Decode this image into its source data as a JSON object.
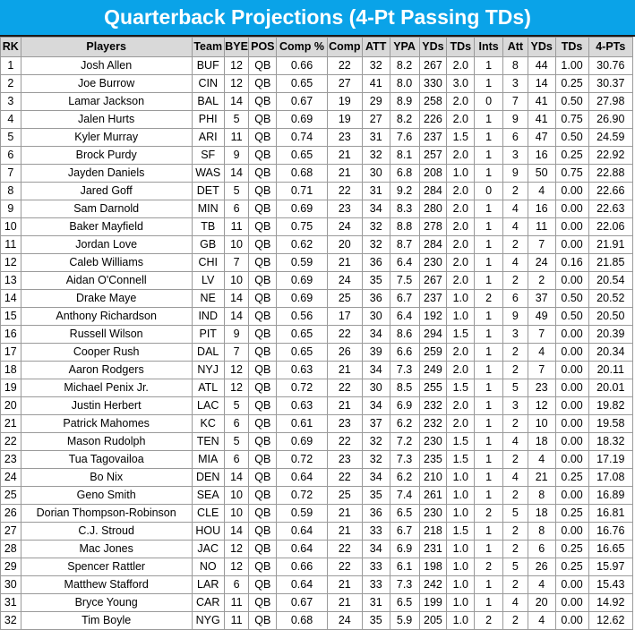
{
  "title": "Quarterback Projections (4-Pt Passing TDs)",
  "columns": [
    "RK",
    "Players",
    "Team",
    "BYE",
    "POS",
    "Comp %",
    "Comp",
    "ATT",
    "YPA",
    "YDs",
    "TDs",
    "Ints",
    "Att",
    "YDs",
    "TDs",
    "4-PTs"
  ],
  "rows": [
    [
      "1",
      "Josh Allen",
      "BUF",
      "12",
      "QB",
      "0.66",
      "22",
      "32",
      "8.2",
      "267",
      "2.0",
      "1",
      "8",
      "44",
      "1.00",
      "30.76"
    ],
    [
      "2",
      "Joe Burrow",
      "CIN",
      "12",
      "QB",
      "0.65",
      "27",
      "41",
      "8.0",
      "330",
      "3.0",
      "1",
      "3",
      "14",
      "0.25",
      "30.37"
    ],
    [
      "3",
      "Lamar Jackson",
      "BAL",
      "14",
      "QB",
      "0.67",
      "19",
      "29",
      "8.9",
      "258",
      "2.0",
      "0",
      "7",
      "41",
      "0.50",
      "27.98"
    ],
    [
      "4",
      "Jalen Hurts",
      "PHI",
      "5",
      "QB",
      "0.69",
      "19",
      "27",
      "8.2",
      "226",
      "2.0",
      "1",
      "9",
      "41",
      "0.75",
      "26.90"
    ],
    [
      "5",
      "Kyler Murray",
      "ARI",
      "11",
      "QB",
      "0.74",
      "23",
      "31",
      "7.6",
      "237",
      "1.5",
      "1",
      "6",
      "47",
      "0.50",
      "24.59"
    ],
    [
      "6",
      "Brock Purdy",
      "SF",
      "9",
      "QB",
      "0.65",
      "21",
      "32",
      "8.1",
      "257",
      "2.0",
      "1",
      "3",
      "16",
      "0.25",
      "22.92"
    ],
    [
      "7",
      "Jayden Daniels",
      "WAS",
      "14",
      "QB",
      "0.68",
      "21",
      "30",
      "6.8",
      "208",
      "1.0",
      "1",
      "9",
      "50",
      "0.75",
      "22.88"
    ],
    [
      "8",
      "Jared Goff",
      "DET",
      "5",
      "QB",
      "0.71",
      "22",
      "31",
      "9.2",
      "284",
      "2.0",
      "0",
      "2",
      "4",
      "0.00",
      "22.66"
    ],
    [
      "9",
      "Sam Darnold",
      "MIN",
      "6",
      "QB",
      "0.69",
      "23",
      "34",
      "8.3",
      "280",
      "2.0",
      "1",
      "4",
      "16",
      "0.00",
      "22.63"
    ],
    [
      "10",
      "Baker Mayfield",
      "TB",
      "11",
      "QB",
      "0.75",
      "24",
      "32",
      "8.8",
      "278",
      "2.0",
      "1",
      "4",
      "11",
      "0.00",
      "22.06"
    ],
    [
      "11",
      "Jordan Love",
      "GB",
      "10",
      "QB",
      "0.62",
      "20",
      "32",
      "8.7",
      "284",
      "2.0",
      "1",
      "2",
      "7",
      "0.00",
      "21.91"
    ],
    [
      "12",
      "Caleb Williams",
      "CHI",
      "7",
      "QB",
      "0.59",
      "21",
      "36",
      "6.4",
      "230",
      "2.0",
      "1",
      "4",
      "24",
      "0.16",
      "21.85"
    ],
    [
      "13",
      "Aidan O'Connell",
      "LV",
      "10",
      "QB",
      "0.69",
      "24",
      "35",
      "7.5",
      "267",
      "2.0",
      "1",
      "2",
      "2",
      "0.00",
      "20.54"
    ],
    [
      "14",
      "Drake Maye",
      "NE",
      "14",
      "QB",
      "0.69",
      "25",
      "36",
      "6.7",
      "237",
      "1.0",
      "2",
      "6",
      "37",
      "0.50",
      "20.52"
    ],
    [
      "15",
      "Anthony Richardson",
      "IND",
      "14",
      "QB",
      "0.56",
      "17",
      "30",
      "6.4",
      "192",
      "1.0",
      "1",
      "9",
      "49",
      "0.50",
      "20.50"
    ],
    [
      "16",
      "Russell Wilson",
      "PIT",
      "9",
      "QB",
      "0.65",
      "22",
      "34",
      "8.6",
      "294",
      "1.5",
      "1",
      "3",
      "7",
      "0.00",
      "20.39"
    ],
    [
      "17",
      "Cooper Rush",
      "DAL",
      "7",
      "QB",
      "0.65",
      "26",
      "39",
      "6.6",
      "259",
      "2.0",
      "1",
      "2",
      "4",
      "0.00",
      "20.34"
    ],
    [
      "18",
      "Aaron Rodgers",
      "NYJ",
      "12",
      "QB",
      "0.63",
      "21",
      "34",
      "7.3",
      "249",
      "2.0",
      "1",
      "2",
      "7",
      "0.00",
      "20.11"
    ],
    [
      "19",
      "Michael Penix Jr.",
      "ATL",
      "12",
      "QB",
      "0.72",
      "22",
      "30",
      "8.5",
      "255",
      "1.5",
      "1",
      "5",
      "23",
      "0.00",
      "20.01"
    ],
    [
      "20",
      "Justin Herbert",
      "LAC",
      "5",
      "QB",
      "0.63",
      "21",
      "34",
      "6.9",
      "232",
      "2.0",
      "1",
      "3",
      "12",
      "0.00",
      "19.82"
    ],
    [
      "21",
      "Patrick Mahomes",
      "KC",
      "6",
      "QB",
      "0.61",
      "23",
      "37",
      "6.2",
      "232",
      "2.0",
      "1",
      "2",
      "10",
      "0.00",
      "19.58"
    ],
    [
      "22",
      "Mason Rudolph",
      "TEN",
      "5",
      "QB",
      "0.69",
      "22",
      "32",
      "7.2",
      "230",
      "1.5",
      "1",
      "4",
      "18",
      "0.00",
      "18.32"
    ],
    [
      "23",
      "Tua Tagovailoa",
      "MIA",
      "6",
      "QB",
      "0.72",
      "23",
      "32",
      "7.3",
      "235",
      "1.5",
      "1",
      "2",
      "4",
      "0.00",
      "17.19"
    ],
    [
      "24",
      "Bo Nix",
      "DEN",
      "14",
      "QB",
      "0.64",
      "22",
      "34",
      "6.2",
      "210",
      "1.0",
      "1",
      "4",
      "21",
      "0.25",
      "17.08"
    ],
    [
      "25",
      "Geno Smith",
      "SEA",
      "10",
      "QB",
      "0.72",
      "25",
      "35",
      "7.4",
      "261",
      "1.0",
      "1",
      "2",
      "8",
      "0.00",
      "16.89"
    ],
    [
      "26",
      "Dorian Thompson-Robinson",
      "CLE",
      "10",
      "QB",
      "0.59",
      "21",
      "36",
      "6.5",
      "230",
      "1.0",
      "2",
      "5",
      "18",
      "0.25",
      "16.81"
    ],
    [
      "27",
      "C.J. Stroud",
      "HOU",
      "14",
      "QB",
      "0.64",
      "21",
      "33",
      "6.7",
      "218",
      "1.5",
      "1",
      "2",
      "8",
      "0.00",
      "16.76"
    ],
    [
      "28",
      "Mac Jones",
      "JAC",
      "12",
      "QB",
      "0.64",
      "22",
      "34",
      "6.9",
      "231",
      "1.0",
      "1",
      "2",
      "6",
      "0.25",
      "16.65"
    ],
    [
      "29",
      "Spencer Rattler",
      "NO",
      "12",
      "QB",
      "0.66",
      "22",
      "33",
      "6.1",
      "198",
      "1.0",
      "2",
      "5",
      "26",
      "0.25",
      "15.97"
    ],
    [
      "30",
      "Matthew Stafford",
      "LAR",
      "6",
      "QB",
      "0.64",
      "21",
      "33",
      "7.3",
      "242",
      "1.0",
      "1",
      "2",
      "4",
      "0.00",
      "15.43"
    ],
    [
      "31",
      "Bryce Young",
      "CAR",
      "11",
      "QB",
      "0.67",
      "21",
      "31",
      "6.5",
      "199",
      "1.0",
      "1",
      "4",
      "20",
      "0.00",
      "14.92"
    ],
    [
      "32",
      "Tim Boyle",
      "NYG",
      "11",
      "QB",
      "0.68",
      "24",
      "35",
      "5.9",
      "205",
      "1.0",
      "2",
      "2",
      "4",
      "0.00",
      "12.62"
    ]
  ],
  "colors": {
    "banner": "#0aa3e8",
    "header": "#d9d9d9",
    "border": "#9a9a9a"
  }
}
